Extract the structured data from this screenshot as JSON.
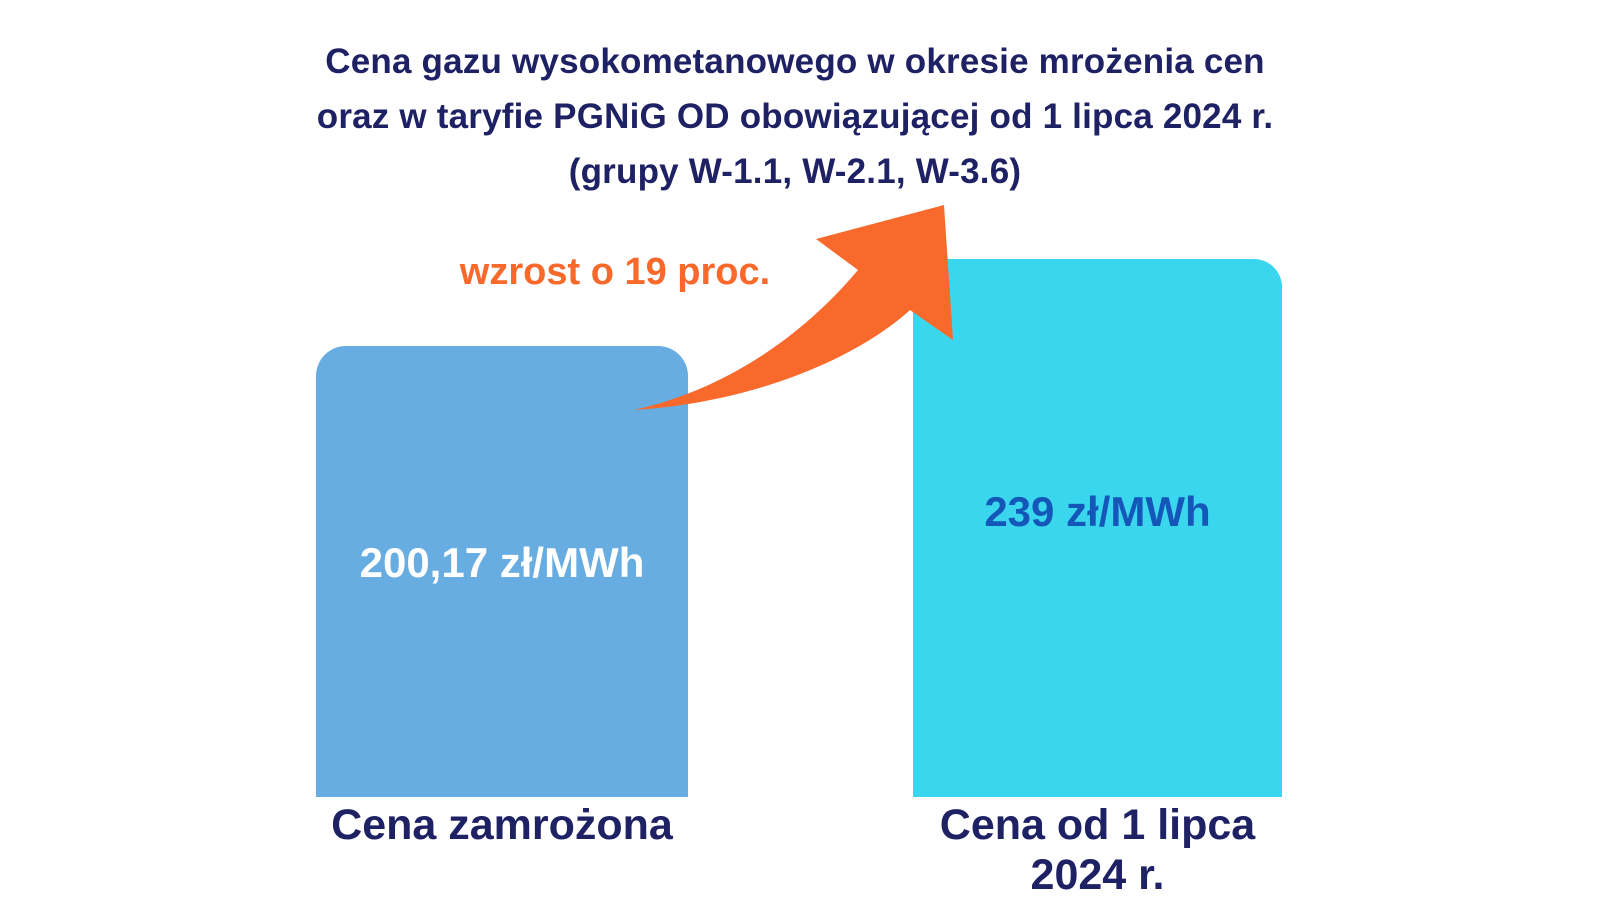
{
  "page": {
    "background": "#ffffff"
  },
  "title": {
    "lines": [
      "Cena gazu wysokometanowego w okresie mrożenia cen",
      "oraz w taryfie PGNiG OD obowiązującej od 1 lipca 2024 r.",
      "(grupy W-1.1, W-2.1, W-3.6)"
    ],
    "color": "#1e2163"
  },
  "annotation": {
    "text": "wzrost o 19 proc.",
    "color": "#f9692b"
  },
  "bars": {
    "left": {
      "value_label": "200,17 zł/MWh",
      "category": "Cena zamrożona",
      "color": "#68ade2",
      "value_text_color": "#ffffff"
    },
    "right": {
      "value_label": "239 zł/MWh",
      "category": "Cena od 1 lipca 2024 r.",
      "color": "#3ad6ee",
      "value_text_color": "#1457b8"
    }
  },
  "chart_data": {
    "type": "bar",
    "title": "Cena gazu wysokometanowego w okresie mrożenia cen oraz w taryfie PGNiG OD obowiązującej od 1 lipca 2024 r. (grupy W-1.1, W-2.1, W-3.6)",
    "categories": [
      "Cena zamrożona",
      "Cena od 1 lipca 2024 r."
    ],
    "values": [
      200.17,
      239
    ],
    "value_labels": [
      "200,17 zł/MWh",
      "239 zł/MWh"
    ],
    "unit": "zł/MWh",
    "annotation": "wzrost o 19 proc.",
    "annotation_meaning": "increase of 19 percent",
    "bar_colors": [
      "#68ade2",
      "#3ad6ee"
    ],
    "title_color": "#1e2163",
    "annotation_color": "#f9692b",
    "xlabel": "",
    "ylabel": "",
    "ylim": [
      0,
      239
    ],
    "grid": false,
    "legend": false
  }
}
